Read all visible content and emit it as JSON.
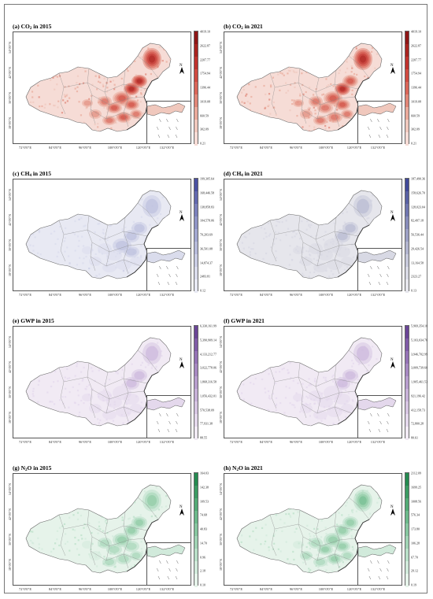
{
  "panels": [
    {
      "label": "(a) CO",
      "sub": "2",
      "label_tail": " in 2015",
      "colors": [
        "#f6dcd6",
        "#f0c8bd",
        "#e9a99a",
        "#e08576",
        "#d96558",
        "#cf4a40",
        "#bf322d",
        "#a8231f",
        "#8f1616"
      ],
      "intensity": 0.85,
      "legend": [
        "4019.10",
        "2622.87",
        "2207.77",
        "1754.94",
        "1396.44",
        "1019.08",
        "660.59",
        "302.09",
        "0.21"
      ]
    },
    {
      "label": "(b) CO",
      "sub": "2",
      "label_tail": " in 2021",
      "colors": [
        "#f6dcd6",
        "#f0c8bd",
        "#e9a99a",
        "#e08576",
        "#d96558",
        "#cf4a40",
        "#bf322d",
        "#a8231f",
        "#8f1616"
      ],
      "intensity": 0.8,
      "legend": [
        "4019.10",
        "2622.87",
        "2207.77",
        "1754.94",
        "1396.44",
        "1019.08",
        "660.59",
        "302.09",
        "0.21"
      ]
    },
    {
      "label": "(c) CH",
      "sub": "4",
      "label_tail": " in 2015",
      "colors": [
        "#e8e9f3",
        "#dadcec",
        "#c9cce4",
        "#b6bada",
        "#a3a8d1",
        "#8f94c6",
        "#7a80bb",
        "#6168ae",
        "#4a51a2"
      ],
      "intensity": 0.35,
      "legend": [
        "199,305.64",
        "168,446.58",
        "138,858.83",
        "104,578.06",
        "70,203.69",
        "36,501.08",
        "14,874.37",
        "2483.81",
        "0.12"
      ]
    },
    {
      "label": "(d) CH",
      "sub": "4",
      "label_tail": " in 2021",
      "colors": [
        "#e6e6ec",
        "#d8d9e4",
        "#c6c8da",
        "#b1b4ce",
        "#9ca0c4",
        "#868bb9",
        "#6f75ae",
        "#5860a3",
        "#414998"
      ],
      "intensity": 0.3,
      "legend": [
        "187,490.36",
        "158,626.70",
        "128,023.04",
        "82,497.18",
        "56,536.44",
        "29,426.54",
        "13,164.58",
        "2323.27",
        "0.13"
      ]
    },
    {
      "label": "(e) GWP in 2015",
      "sub": "",
      "label_tail": "",
      "colors": [
        "#f1eaf4",
        "#e4d8ec",
        "#d6c5e2",
        "#c7b1d8",
        "#b79dcd",
        "#a688c1",
        "#9472b5",
        "#7f5ba6",
        "#6a4596"
      ],
      "intensity": 0.3,
      "legend": [
        "6,330,161.99",
        "5,390,909.14",
        "4,133,212.77",
        "3,022,778.06",
        "1,868,316.58",
        "1,056,432.01",
        "570,538.09",
        "77,931.38",
        "88.55"
      ]
    },
    {
      "label": "(f) GWP in 2021",
      "sub": "",
      "label_tail": "",
      "colors": [
        "#f1eaf4",
        "#e4d8ec",
        "#d6c5e2",
        "#c7b1d8",
        "#b79dcd",
        "#a688c1",
        "#9472b5",
        "#7f5ba6",
        "#6a4596"
      ],
      "intensity": 0.3,
      "legend": [
        "5,969,354.10",
        "5,103,034.76",
        "3,946,702.99",
        "3,009,739.60",
        "1,905,461.53",
        "921,196.42",
        "412,158.73",
        "72,800.28",
        "80.61"
      ]
    },
    {
      "label": "(g) N",
      "sub": "2",
      "label_tail": "O in 2015",
      "colors": [
        "#e6f3ea",
        "#d1eadb",
        "#b9dfc8",
        "#a0d3b4",
        "#86c69f",
        "#6cb98a",
        "#53aa75",
        "#3b9a62",
        "#258a50"
      ],
      "intensity": 0.55,
      "legend": [
        "164.03",
        "142.38",
        "109.53",
        "74.68",
        "40.83",
        "14.70",
        "0.96",
        "2.18",
        "0.10"
      ]
    },
    {
      "label": "(h) N",
      "sub": "2",
      "label_tail": "O in 2021",
      "colors": [
        "#e6f3ea",
        "#d1eadb",
        "#b9dfc8",
        "#a0d3b4",
        "#86c69f",
        "#6cb98a",
        "#53aa75",
        "#3b9a62",
        "#258a50"
      ],
      "intensity": 0.6,
      "legend": [
        "2112.09",
        "1699.25",
        "1008.56",
        "576.34",
        "173.80",
        "106.28",
        "67.70",
        "29.12",
        "0.19"
      ]
    }
  ],
  "lon_labels": [
    "72°0'0\"E",
    "84°0'0\"E",
    "96°0'0\"E",
    "108°0'0\"E",
    "120°0'0\"E",
    "132°0'0\"E"
  ],
  "lat_labels": [
    "54°0'0\"N",
    "42°0'0\"N",
    "30°0'0\"N",
    "18°0'0\"N"
  ],
  "scale_labels": [
    "0",
    "1250",
    "2500 km"
  ],
  "north_label": "N"
}
